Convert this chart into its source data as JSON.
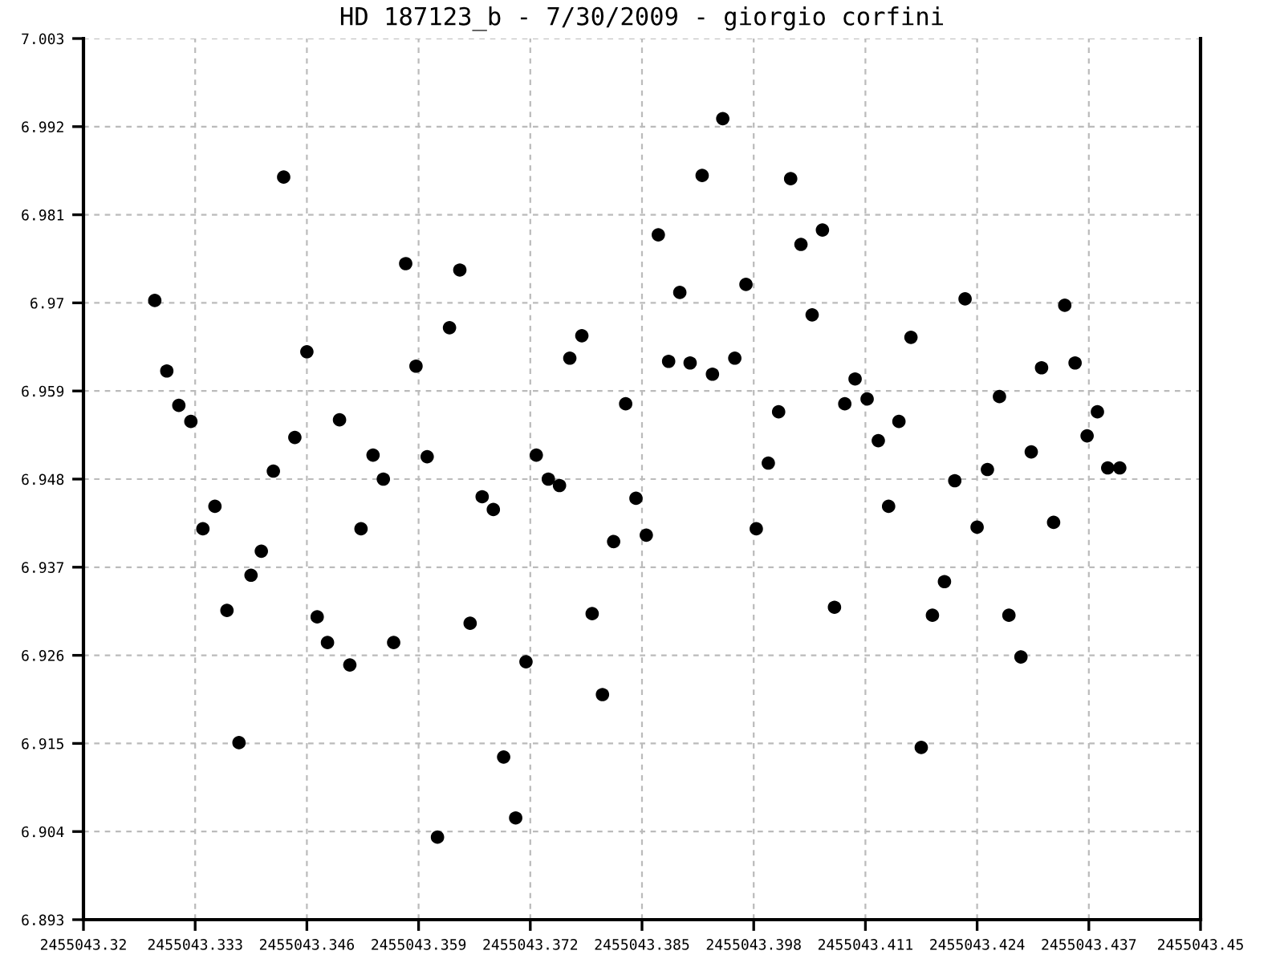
{
  "chart_data": {
    "type": "scatter",
    "title": "HD 187123_b - 7/30/2009 - giorgio corfini",
    "x": [
      2455043.3283,
      2455043.3297,
      2455043.3311,
      2455043.3325,
      2455043.3339,
      2455043.3353,
      2455043.3367,
      2455043.3381,
      2455043.3395,
      2455043.3407,
      2455043.3421,
      2455043.3433,
      2455043.3446,
      2455043.346,
      2455043.3472,
      2455043.3484,
      2455043.3498,
      2455043.351,
      2455043.3523,
      2455043.3537,
      2455043.3549,
      2455043.3561,
      2455043.3575,
      2455043.3587,
      2455043.36,
      2455043.3612,
      2455043.3626,
      2455043.3638,
      2455043.365,
      2455043.3664,
      2455043.3677,
      2455043.3689,
      2455043.3703,
      2455043.3715,
      2455043.3727,
      2455043.3741,
      2455043.3754,
      2455043.3766,
      2455043.378,
      2455043.3792,
      2455043.3804,
      2455043.3817,
      2455043.3831,
      2455043.3843,
      2455043.3855,
      2455043.3869,
      2455043.3881,
      2455043.3894,
      2455043.3906,
      2455043.392,
      2455043.3932,
      2455043.3944,
      2455043.3958,
      2455043.3971,
      2455043.3983,
      2455043.3997,
      2455043.4009,
      2455043.4023,
      2455043.4035,
      2455043.4048,
      2455043.406,
      2455043.4074,
      2455043.4086,
      2455043.4098,
      2455043.4112,
      2455043.4125,
      2455043.4137,
      2455043.4149,
      2455043.4163,
      2455043.4175,
      2455043.4188,
      2455043.4202,
      2455043.4214,
      2455043.4226,
      2455043.424,
      2455043.4252,
      2455043.4266,
      2455043.4277,
      2455043.4291,
      2455043.4303,
      2455043.4315,
      2455043.4329,
      2455043.4342,
      2455043.4354,
      2455043.4368,
      2455043.438,
      2455043.4392,
      2455043.4406
    ],
    "series": [
      {
        "color": "#000000",
        "values": [
          6.9703,
          6.9615,
          6.9572,
          6.9552,
          6.9418,
          6.9446,
          6.9316,
          6.9151,
          6.936,
          6.939,
          6.949,
          6.9857,
          6.9532,
          6.9639,
          6.9308,
          6.9276,
          6.9554,
          6.9248,
          6.9418,
          6.951,
          6.948,
          6.9276,
          6.9749,
          6.9621,
          6.9508,
          6.9033,
          6.9669,
          6.9741,
          6.93,
          6.9458,
          6.9442,
          6.9133,
          6.9057,
          6.9252,
          6.951,
          6.948,
          6.9472,
          6.9631,
          6.9659,
          6.9312,
          6.9211,
          6.9402,
          6.9574,
          6.9456,
          6.941,
          6.9785,
          6.9627,
          6.9713,
          6.9625,
          6.9859,
          6.9611,
          6.993,
          6.9631,
          6.9723,
          6.9418,
          6.95,
          6.9564,
          6.9855,
          6.9773,
          6.9685,
          6.9791,
          6.932,
          6.9574,
          6.9605,
          6.958,
          6.9528,
          6.9446,
          6.9552,
          6.9657,
          6.9145,
          6.931,
          6.9352,
          6.9478,
          6.9705,
          6.942,
          6.9492,
          6.9583,
          6.931,
          6.9258,
          6.9514,
          6.9619,
          6.9426,
          6.9697,
          6.9625,
          6.9534,
          6.9564,
          6.9494,
          6.9494
        ]
      }
    ],
    "xlim": [
      2455043.32,
      2455043.45
    ],
    "xticks": [
      2455043.32,
      2455043.333,
      2455043.346,
      2455043.359,
      2455043.372,
      2455043.385,
      2455043.398,
      2455043.411,
      2455043.424,
      2455043.437,
      2455043.45
    ],
    "ylim": [
      6.893,
      7.003
    ],
    "yticks": [
      6.893,
      6.904,
      6.915,
      6.926,
      6.937,
      6.948,
      6.959,
      6.97,
      6.981,
      6.992,
      7.003
    ],
    "grid": true,
    "marker": "circle",
    "legend": false
  }
}
